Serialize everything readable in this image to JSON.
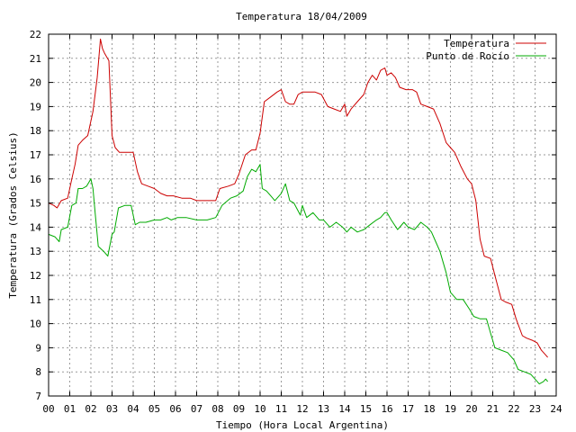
{
  "chart_data": {
    "type": "line",
    "title": "Temperatura 18/04/2009",
    "xlabel": "Tiempo (Hora Local Argentina)",
    "ylabel": "Temperatura (Grados Celsius)",
    "xlim": [
      0,
      24
    ],
    "ylim": [
      7,
      22
    ],
    "x_tick_labels": [
      "00",
      "01",
      "02",
      "03",
      "04",
      "05",
      "06",
      "07",
      "08",
      "09",
      "10",
      "11",
      "12",
      "13",
      "14",
      "15",
      "16",
      "17",
      "18",
      "19",
      "20",
      "21",
      "22",
      "23",
      "24"
    ],
    "y_tick_labels": [
      "7",
      "8",
      "9",
      "10",
      "11",
      "12",
      "13",
      "14",
      "15",
      "16",
      "17",
      "18",
      "19",
      "20",
      "21",
      "22"
    ],
    "grid": true,
    "legend_position": "top-right",
    "series": [
      {
        "name": "Temperatura",
        "color": "#cc0000",
        "x": [
          0.0,
          0.25,
          0.4,
          0.6,
          0.9,
          1.1,
          1.25,
          1.4,
          1.6,
          1.85,
          2.1,
          2.3,
          2.45,
          2.55,
          2.65,
          2.85,
          3.0,
          3.15,
          3.35,
          3.6,
          4.0,
          4.2,
          4.4,
          4.7,
          5.0,
          5.3,
          5.6,
          5.9,
          6.3,
          6.7,
          7.0,
          7.5,
          7.9,
          8.1,
          8.5,
          8.8,
          9.0,
          9.3,
          9.6,
          9.8,
          10.0,
          10.2,
          10.5,
          10.8,
          11.0,
          11.2,
          11.4,
          11.6,
          11.8,
          12.0,
          12.3,
          12.6,
          12.9,
          13.2,
          13.5,
          13.8,
          14.0,
          14.1,
          14.3,
          14.6,
          14.9,
          15.1,
          15.3,
          15.5,
          15.7,
          15.9,
          16.0,
          16.2,
          16.4,
          16.6,
          16.9,
          17.2,
          17.4,
          17.6,
          17.9,
          18.2,
          18.5,
          18.8,
          19.0,
          19.2,
          19.5,
          19.8,
          20.0,
          20.2,
          20.4,
          20.6,
          20.9,
          21.1,
          21.4,
          21.6,
          21.9,
          22.1,
          22.4,
          22.6,
          22.9,
          23.1,
          23.3,
          23.5,
          23.6
        ],
        "y": [
          15.0,
          14.9,
          14.8,
          15.1,
          15.2,
          16.0,
          16.6,
          17.4,
          17.6,
          17.8,
          18.8,
          20.2,
          21.8,
          21.4,
          21.2,
          20.9,
          17.8,
          17.3,
          17.1,
          17.1,
          17.1,
          16.3,
          15.8,
          15.7,
          15.6,
          15.4,
          15.3,
          15.3,
          15.2,
          15.2,
          15.1,
          15.1,
          15.1,
          15.6,
          15.7,
          15.8,
          16.2,
          17.0,
          17.2,
          17.2,
          17.9,
          19.2,
          19.4,
          19.6,
          19.7,
          19.2,
          19.1,
          19.1,
          19.5,
          19.6,
          19.6,
          19.6,
          19.5,
          19.0,
          18.9,
          18.8,
          19.1,
          18.6,
          18.9,
          19.2,
          19.5,
          20.0,
          20.3,
          20.1,
          20.5,
          20.6,
          20.3,
          20.4,
          20.2,
          19.8,
          19.7,
          19.7,
          19.6,
          19.1,
          19.0,
          18.9,
          18.3,
          17.5,
          17.3,
          17.1,
          16.5,
          16.0,
          15.8,
          15.1,
          13.5,
          12.8,
          12.7,
          12.0,
          11.0,
          10.9,
          10.8,
          10.2,
          9.5,
          9.4,
          9.3,
          9.2,
          8.9,
          8.7,
          8.6
        ]
      },
      {
        "name": "Punto de Rocío",
        "color": "#00aa00",
        "x": [
          0.0,
          0.3,
          0.5,
          0.6,
          0.9,
          1.1,
          1.3,
          1.4,
          1.6,
          1.8,
          2.0,
          2.1,
          2.2,
          2.35,
          2.6,
          2.8,
          3.0,
          3.1,
          3.3,
          3.6,
          3.9,
          4.1,
          4.3,
          4.6,
          5.0,
          5.3,
          5.6,
          5.8,
          6.1,
          6.5,
          7.0,
          7.5,
          7.9,
          8.2,
          8.6,
          8.9,
          9.2,
          9.4,
          9.6,
          9.8,
          10.0,
          10.1,
          10.3,
          10.5,
          10.7,
          11.0,
          11.2,
          11.4,
          11.6,
          11.9,
          12.0,
          12.2,
          12.5,
          12.8,
          13.0,
          13.3,
          13.6,
          13.9,
          14.1,
          14.3,
          14.6,
          14.9,
          15.2,
          15.5,
          15.7,
          15.9,
          16.0,
          16.2,
          16.5,
          16.8,
          17.0,
          17.3,
          17.6,
          17.9,
          18.1,
          18.3,
          18.5,
          18.8,
          19.0,
          19.3,
          19.6,
          19.9,
          20.1,
          20.4,
          20.7,
          20.9,
          21.1,
          21.4,
          21.7,
          22.0,
          22.2,
          22.5,
          22.8,
          23.0,
          23.2,
          23.4,
          23.5,
          23.6
        ],
        "y": [
          13.7,
          13.6,
          13.4,
          13.9,
          14.0,
          14.9,
          15.0,
          15.6,
          15.6,
          15.7,
          16.0,
          15.6,
          14.6,
          13.2,
          13.0,
          12.8,
          13.7,
          13.8,
          14.8,
          14.9,
          14.9,
          14.1,
          14.2,
          14.2,
          14.3,
          14.3,
          14.4,
          14.3,
          14.4,
          14.4,
          14.3,
          14.3,
          14.4,
          14.9,
          15.2,
          15.3,
          15.5,
          16.1,
          16.4,
          16.3,
          16.6,
          15.6,
          15.5,
          15.3,
          15.1,
          15.4,
          15.8,
          15.1,
          15.0,
          14.5,
          14.9,
          14.4,
          14.6,
          14.3,
          14.3,
          14.0,
          14.2,
          14.0,
          13.8,
          14.0,
          13.8,
          13.9,
          14.1,
          14.3,
          14.4,
          14.6,
          14.6,
          14.3,
          13.9,
          14.2,
          14.0,
          13.9,
          14.2,
          14.0,
          13.8,
          13.4,
          13.0,
          12.1,
          11.3,
          11.0,
          11.0,
          10.6,
          10.3,
          10.2,
          10.2,
          9.6,
          9.0,
          8.9,
          8.8,
          8.5,
          8.1,
          8.0,
          7.9,
          7.7,
          7.5,
          7.6,
          7.7,
          7.6
        ]
      }
    ]
  }
}
